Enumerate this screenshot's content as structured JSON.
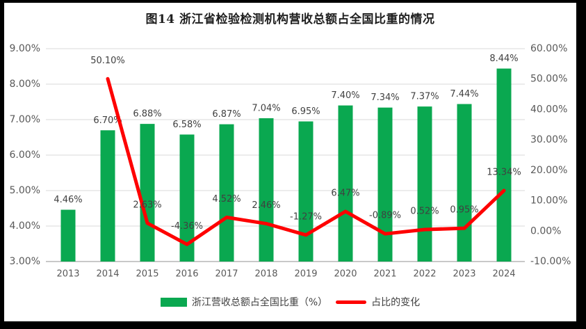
{
  "chart_data": {
    "type": "combo-bar-line",
    "title": "图14  浙江省检验检测机构营收总额占全国比重的情况",
    "categories": [
      "2013",
      "2014",
      "2015",
      "2016",
      "2017",
      "2018",
      "2019",
      "2020",
      "2021",
      "2022",
      "2023",
      "2024"
    ],
    "series": [
      {
        "name": "浙江营收总额占全国比重（%）",
        "type": "bar",
        "axis": "left",
        "color": "#0aa850",
        "values": [
          4.46,
          6.7,
          6.88,
          6.58,
          6.87,
          7.04,
          6.95,
          7.4,
          7.34,
          7.37,
          7.44,
          8.44
        ],
        "labels": [
          "4.46%",
          "6.70%",
          "6.88%",
          "6.58%",
          "6.87%",
          "7.04%",
          "6.95%",
          "7.40%",
          "7.34%",
          "7.37%",
          "7.44%",
          "8.44%"
        ]
      },
      {
        "name": "占比的变化",
        "type": "line",
        "axis": "right",
        "color": "#fe0000",
        "values": [
          null,
          50.1,
          2.63,
          -4.36,
          4.52,
          2.46,
          -1.27,
          6.47,
          -0.89,
          0.52,
          0.95,
          13.34
        ],
        "labels": [
          null,
          "50.10%",
          "2.63%",
          "-4.36%",
          "4.52%",
          "2.46%",
          "-1.27%",
          "6.47%",
          "-0.89%",
          "0.52%",
          "0.95%",
          "13.34%"
        ]
      }
    ],
    "left_axis": {
      "min": 3,
      "max": 9,
      "tick_values": [
        9,
        8,
        7,
        6,
        5,
        4,
        3
      ],
      "tick_labels": [
        "9.00%",
        "8.00%",
        "7.00%",
        "6.00%",
        "5.00%",
        "4.00%",
        "3.00%"
      ]
    },
    "right_axis": {
      "min": -10,
      "max": 60,
      "tick_values": [
        60,
        50,
        40,
        30,
        20,
        10,
        0,
        -10
      ],
      "tick_labels": [
        "60.00%",
        "50.00%",
        "40.00%",
        "30.00%",
        "20.00%",
        "10.00%",
        "0.00%",
        "-10.00%"
      ]
    },
    "grid": true,
    "legend_position": "bottom"
  },
  "colors": {
    "bar": "#0aa850",
    "line": "#fe0000",
    "gridline": "#d9d9d9",
    "axis_line": "#c8c8c8",
    "tick_text": "#595959",
    "data_label_text": "#404040",
    "frame": "#000000"
  }
}
